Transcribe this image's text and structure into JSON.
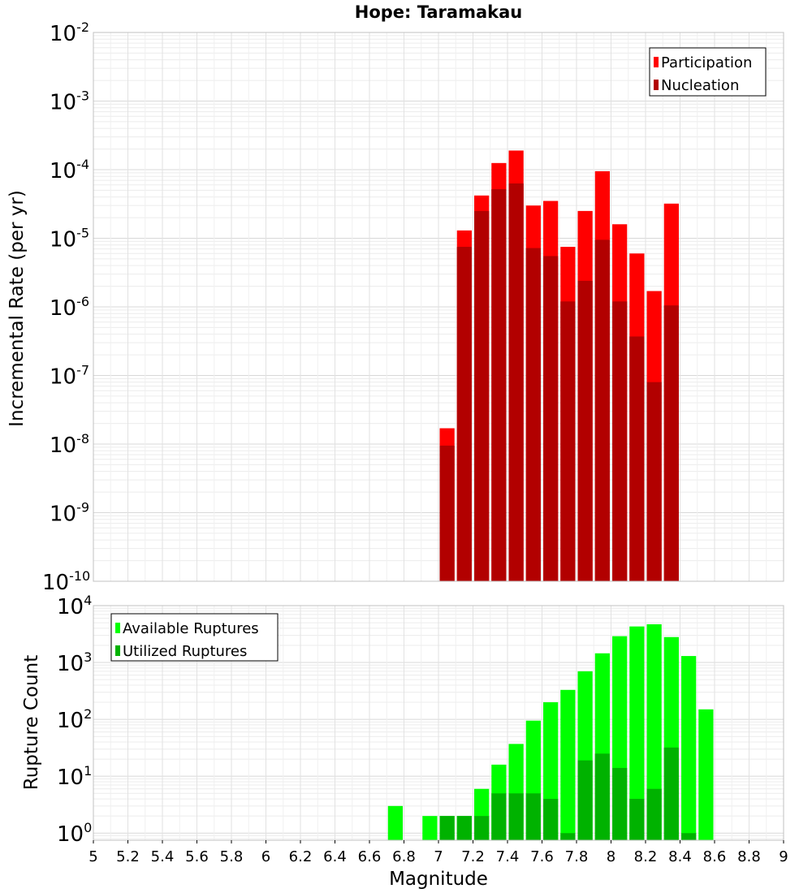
{
  "chart_data": [
    {
      "type": "bar",
      "title": "Hope: Taramakau",
      "xlabel": "",
      "ylabel": "Incremental Rate (per yr)",
      "yscale": "log",
      "xlim": [
        5,
        9
      ],
      "ylim": [
        1e-10,
        0.01
      ],
      "ytick_exponents": [
        "-10",
        "-9",
        "-8",
        "-7",
        "-6",
        "-5",
        "-4",
        "-3",
        "-2"
      ],
      "legend_position": "top-right",
      "bar_width": 0.1,
      "overlay": true,
      "grid": true,
      "x": [
        7.05,
        7.15,
        7.25,
        7.35,
        7.45,
        7.55,
        7.65,
        7.75,
        7.85,
        7.95,
        8.05,
        8.15,
        8.25,
        8.35
      ],
      "series": [
        {
          "name": "Participation",
          "color": "#ff0000",
          "values": [
            1.7e-08,
            1.3e-05,
            4.2e-05,
            0.000125,
            0.00019,
            3e-05,
            3.5e-05,
            7.5e-06,
            2.5e-05,
            9.5e-05,
            1.6e-05,
            6e-06,
            1.7e-06,
            3.2e-05
          ]
        },
        {
          "name": "Nucleation",
          "color": "#b20000",
          "values": [
            9.5e-09,
            7.5e-06,
            2.5e-05,
            5.2e-05,
            6.3e-05,
            7.2e-06,
            5.5e-06,
            1.2e-06,
            2.4e-06,
            9.5e-06,
            1.2e-06,
            3.7e-07,
            8e-08,
            1.05e-06
          ]
        }
      ]
    },
    {
      "type": "bar",
      "title": "",
      "xlabel": "Magnitude",
      "ylabel": "Rupture Count",
      "yscale": "log",
      "xlim": [
        5,
        9
      ],
      "ylim": [
        0.75,
        10000
      ],
      "ytick_exponents": [
        "0",
        "1",
        "2",
        "3",
        "4"
      ],
      "xticks": [
        "5",
        "5.2",
        "5.4",
        "5.6",
        "5.8",
        "6",
        "6.2",
        "6.4",
        "6.6",
        "6.8",
        "7",
        "7.2",
        "7.4",
        "7.6",
        "7.8",
        "8",
        "8.2",
        "8.4",
        "8.6",
        "8.8",
        "9"
      ],
      "legend_position": "top-left",
      "bar_width": 0.1,
      "overlay": true,
      "grid": true,
      "x": [
        6.75,
        6.95,
        7.05,
        7.15,
        7.25,
        7.35,
        7.45,
        7.55,
        7.65,
        7.75,
        7.85,
        7.95,
        8.05,
        8.15,
        8.25,
        8.35,
        8.45,
        8.55
      ],
      "series": [
        {
          "name": "Available Ruptures",
          "color": "#00ff00",
          "values": [
            3,
            2,
            2,
            2,
            6,
            16,
            37,
            95,
            200,
            330,
            700,
            1450,
            2900,
            4300,
            4700,
            2800,
            1300,
            150
          ]
        },
        {
          "name": "Utilized Ruptures",
          "color": "#00b200",
          "values": [
            0,
            0,
            2,
            2,
            2,
            5,
            5,
            5,
            4,
            1,
            19,
            25,
            14,
            4,
            6,
            32,
            1,
            0
          ]
        }
      ]
    }
  ]
}
